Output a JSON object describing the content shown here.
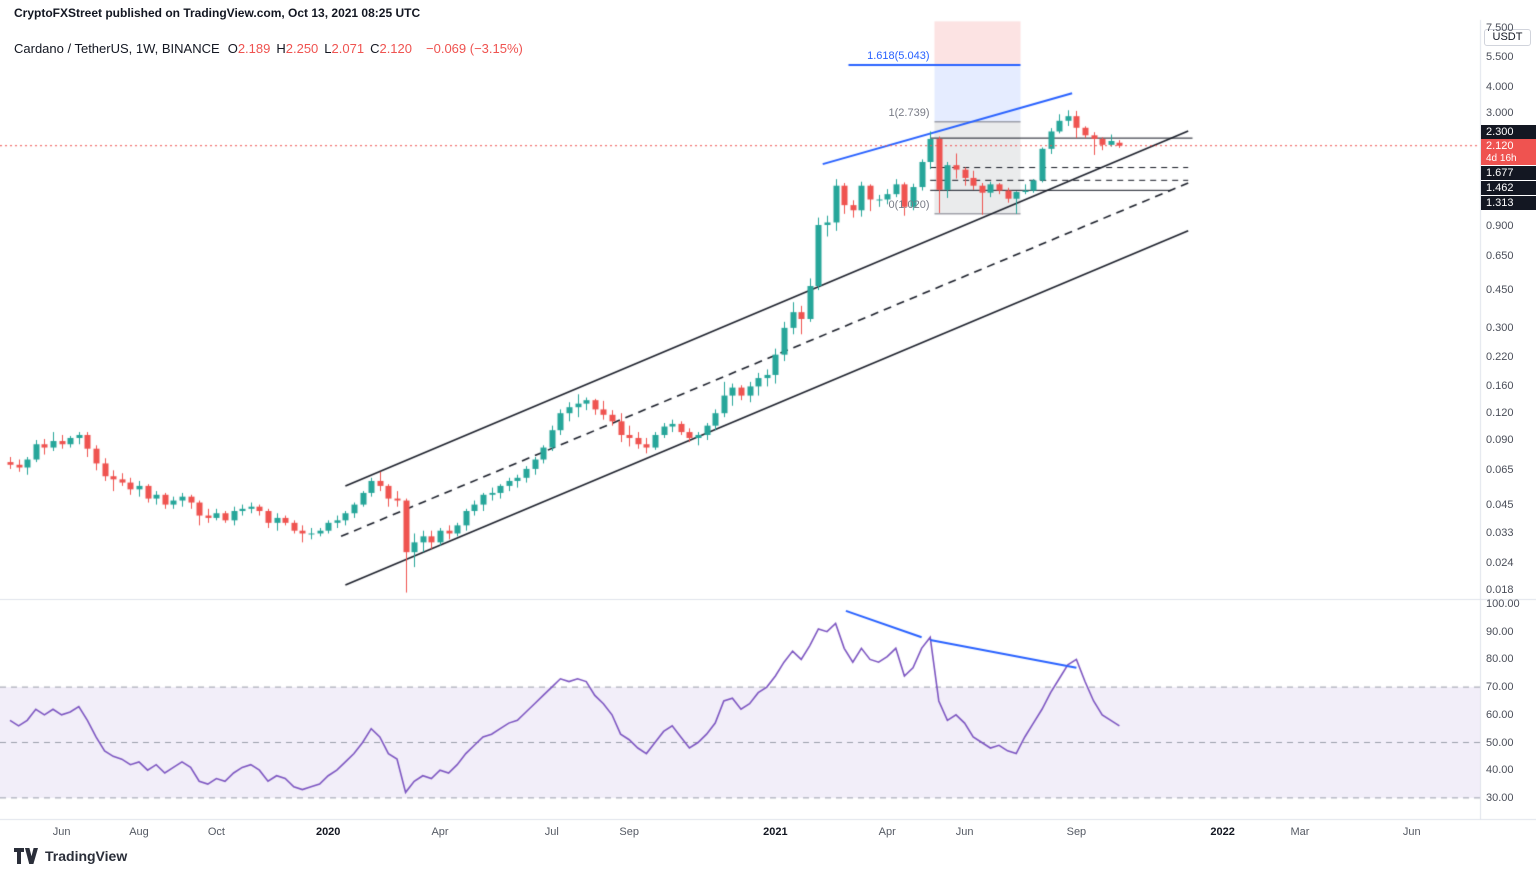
{
  "attribution": "CryptoFXStreet published on TradingView.com, Oct 13, 2021 08:25 UTC",
  "header": {
    "symbol": "Cardano / TetherUS, 1W, BINANCE",
    "fields": [
      {
        "label": "O",
        "value": "2.189"
      },
      {
        "label": "H",
        "value": "2.250"
      },
      {
        "label": "L",
        "value": "2.071"
      },
      {
        "label": "C",
        "value": "2.120"
      }
    ],
    "change": "−0.069 (−3.15%)"
  },
  "axis": {
    "unit_button": "USDT",
    "price_ticks": [
      {
        "v": 7.5,
        "label": "7.500"
      },
      {
        "v": 5.5,
        "label": "5.500"
      },
      {
        "v": 4.0,
        "label": "4.000"
      },
      {
        "v": 3.0,
        "label": "3.000"
      },
      {
        "v": 0.9,
        "label": "0.900"
      },
      {
        "v": 0.65,
        "label": "0.650"
      },
      {
        "v": 0.45,
        "label": "0.450"
      },
      {
        "v": 0.3,
        "label": "0.300"
      },
      {
        "v": 0.22,
        "label": "0.220"
      },
      {
        "v": 0.16,
        "label": "0.160"
      },
      {
        "v": 0.12,
        "label": "0.120"
      },
      {
        "v": 0.09,
        "label": "0.090"
      },
      {
        "v": 0.065,
        "label": "0.065"
      },
      {
        "v": 0.045,
        "label": "0.045"
      },
      {
        "v": 0.033,
        "label": "0.033"
      },
      {
        "v": 0.024,
        "label": "0.024"
      },
      {
        "v": 0.018,
        "label": "0.018"
      }
    ],
    "rsi_ticks": [
      {
        "v": 100,
        "label": "100.00"
      },
      {
        "v": 90,
        "label": "90.00"
      },
      {
        "v": 80,
        "label": "80.00"
      },
      {
        "v": 70,
        "label": "70.00"
      },
      {
        "v": 60,
        "label": "60.00"
      },
      {
        "v": 50,
        "label": "50.00"
      },
      {
        "v": 40,
        "label": "40.00"
      },
      {
        "v": 30,
        "label": "30.00"
      }
    ],
    "time_labels": [
      {
        "label": "Jun",
        "idx": 6,
        "year": false
      },
      {
        "label": "Aug",
        "idx": 15,
        "year": false
      },
      {
        "label": "Oct",
        "idx": 24,
        "year": false
      },
      {
        "label": "2020",
        "idx": 37,
        "year": true
      },
      {
        "label": "Apr",
        "idx": 50,
        "year": false
      },
      {
        "label": "Jul",
        "idx": 63,
        "year": false
      },
      {
        "label": "Sep",
        "idx": 72,
        "year": false
      },
      {
        "label": "2021",
        "idx": 89,
        "year": true
      },
      {
        "label": "Apr",
        "idx": 102,
        "year": false
      },
      {
        "label": "Jun",
        "idx": 111,
        "year": false
      },
      {
        "label": "Sep",
        "idx": 124,
        "year": false
      },
      {
        "label": "2022",
        "idx": 141,
        "year": true
      },
      {
        "label": "Mar",
        "idx": 150,
        "year": false
      },
      {
        "label": "Jun",
        "idx": 163,
        "year": false
      }
    ]
  },
  "logo": {
    "word": "TradingView"
  },
  "chart_data": {
    "type": "candlestick",
    "title": "Cardano / TetherUS, 1W, BINANCE",
    "scale": "log",
    "indicator": "RSI with 30-70 band and bearish-divergence trendlines",
    "current_price": {
      "value": 2.12,
      "label": "2.120",
      "countdown": "4d 16h"
    },
    "levels": [
      {
        "price": 2.3,
        "style": "solid",
        "from_idx": 107,
        "to_idx": 137.5,
        "axis_label": "2.300"
      },
      {
        "price": 1.677,
        "style": "dashed",
        "from_idx": 107,
        "to_idx": 137,
        "axis_label": "1.677"
      },
      {
        "price": 1.462,
        "style": "dashed",
        "from_idx": 107,
        "to_idx": 137,
        "axis_label": "1.462"
      },
      {
        "price": 1.313,
        "style": "solid",
        "from_idx": 107,
        "to_idx": 135,
        "axis_label": "1.313"
      }
    ],
    "fib": {
      "zones": [
        {
          "from": 5.043,
          "to": 8.05,
          "from_idx": 107.5,
          "to_idx": 117.5,
          "color": "rgba(239,83,80,0.16)"
        },
        {
          "from": 2.739,
          "to": 5.043,
          "from_idx": 107.5,
          "to_idx": 117.5,
          "color": "rgba(41,98,255,0.12)"
        },
        {
          "from": 1.02,
          "to": 2.739,
          "from_idx": 107.5,
          "to_idx": 117.5,
          "color": "rgba(140,142,150,0.18)"
        }
      ],
      "boundary_prices": [
        2.739,
        1.02
      ],
      "line_5043": {
        "price": 5.043,
        "from_idx": 97.5,
        "to_idx": 117.5
      },
      "labels": [
        {
          "text": "1.618(5.043)",
          "price": 5.043,
          "color": "#2962ff"
        },
        {
          "text": "1(2.739)",
          "price": 2.739,
          "color": "#787b86"
        },
        {
          "text": "0(1.020)",
          "price": 1.02,
          "color": "#787b86"
        }
      ]
    },
    "channel": [
      {
        "i1": 39,
        "p1": 0.055,
        "i2": 137,
        "p2": 2.48,
        "style": "solid"
      },
      {
        "i1": 38.5,
        "p1": 0.032,
        "i2": 137,
        "p2": 1.42,
        "style": "dashed"
      },
      {
        "i1": 39,
        "p1": 0.019,
        "i2": 137,
        "p2": 0.85,
        "style": "solid"
      }
    ],
    "blue_trendline": {
      "i1": 94.5,
      "p1": 1.74,
      "i2": 123.5,
      "p2": 3.72
    },
    "rsi_trendlines": [
      {
        "i1": 97.2,
        "v1": 97.5,
        "i2": 106,
        "v2": 88
      },
      {
        "i1": 107,
        "v1": 87,
        "i2": 124,
        "v2": 77
      }
    ],
    "rsi_band": [
      30,
      70
    ],
    "colors": {
      "up": "#26a69a",
      "down": "#ef5350",
      "blue": "#2962ff",
      "rsi": "#7e57c2",
      "channel": "#1e222d",
      "level": "#131722",
      "current": "#ef5350",
      "band_fill": "rgba(126,87,194,0.10)",
      "band_line": "#9b9eab",
      "separator": "#e0e3eb"
    },
    "candles": [
      [
        0.071,
        0.075,
        0.066,
        0.069
      ],
      [
        0.069,
        0.073,
        0.064,
        0.067
      ],
      [
        0.067,
        0.075,
        0.062,
        0.073
      ],
      [
        0.073,
        0.09,
        0.071,
        0.086
      ],
      [
        0.086,
        0.091,
        0.077,
        0.083
      ],
      [
        0.083,
        0.098,
        0.08,
        0.089
      ],
      [
        0.089,
        0.095,
        0.082,
        0.086
      ],
      [
        0.086,
        0.094,
        0.083,
        0.092
      ],
      [
        0.092,
        0.098,
        0.086,
        0.095
      ],
      [
        0.095,
        0.098,
        0.075,
        0.082
      ],
      [
        0.082,
        0.085,
        0.065,
        0.07
      ],
      [
        0.07,
        0.074,
        0.058,
        0.061
      ],
      [
        0.061,
        0.065,
        0.052,
        0.059
      ],
      [
        0.059,
        0.063,
        0.055,
        0.057
      ],
      [
        0.057,
        0.06,
        0.05,
        0.053
      ],
      [
        0.053,
        0.058,
        0.049,
        0.055
      ],
      [
        0.055,
        0.056,
        0.046,
        0.048
      ],
      [
        0.048,
        0.052,
        0.045,
        0.05
      ],
      [
        0.05,
        0.051,
        0.043,
        0.045
      ],
      [
        0.045,
        0.049,
        0.043,
        0.047
      ],
      [
        0.047,
        0.051,
        0.044,
        0.049
      ],
      [
        0.049,
        0.05,
        0.043,
        0.046
      ],
      [
        0.046,
        0.047,
        0.036,
        0.04
      ],
      [
        0.04,
        0.043,
        0.037,
        0.039
      ],
      [
        0.039,
        0.043,
        0.038,
        0.041
      ],
      [
        0.041,
        0.042,
        0.037,
        0.038
      ],
      [
        0.038,
        0.044,
        0.036,
        0.042
      ],
      [
        0.042,
        0.045,
        0.04,
        0.043
      ],
      [
        0.043,
        0.046,
        0.041,
        0.044
      ],
      [
        0.044,
        0.045,
        0.04,
        0.042
      ],
      [
        0.042,
        0.043,
        0.035,
        0.037
      ],
      [
        0.037,
        0.041,
        0.034,
        0.039
      ],
      [
        0.039,
        0.04,
        0.036,
        0.037
      ],
      [
        0.037,
        0.038,
        0.033,
        0.034
      ],
      [
        0.034,
        0.036,
        0.03,
        0.033
      ],
      [
        0.033,
        0.035,
        0.031,
        0.033
      ],
      [
        0.033,
        0.035,
        0.032,
        0.034
      ],
      [
        0.034,
        0.038,
        0.033,
        0.037
      ],
      [
        0.037,
        0.04,
        0.035,
        0.038
      ],
      [
        0.038,
        0.042,
        0.036,
        0.041
      ],
      [
        0.041,
        0.046,
        0.039,
        0.045
      ],
      [
        0.045,
        0.052,
        0.044,
        0.051
      ],
      [
        0.051,
        0.06,
        0.049,
        0.058
      ],
      [
        0.058,
        0.064,
        0.052,
        0.055
      ],
      [
        0.055,
        0.056,
        0.044,
        0.048
      ],
      [
        0.048,
        0.052,
        0.044,
        0.047
      ],
      [
        0.047,
        0.048,
        0.0175,
        0.027
      ],
      [
        0.027,
        0.033,
        0.023,
        0.03
      ],
      [
        0.03,
        0.034,
        0.027,
        0.032
      ],
      [
        0.032,
        0.034,
        0.028,
        0.03
      ],
      [
        0.03,
        0.035,
        0.029,
        0.034
      ],
      [
        0.034,
        0.036,
        0.031,
        0.033
      ],
      [
        0.033,
        0.037,
        0.032,
        0.036
      ],
      [
        0.036,
        0.043,
        0.034,
        0.042
      ],
      [
        0.042,
        0.047,
        0.04,
        0.045
      ],
      [
        0.045,
        0.051,
        0.042,
        0.05
      ],
      [
        0.05,
        0.054,
        0.047,
        0.051
      ],
      [
        0.051,
        0.056,
        0.048,
        0.055
      ],
      [
        0.055,
        0.06,
        0.052,
        0.058
      ],
      [
        0.058,
        0.062,
        0.054,
        0.06
      ],
      [
        0.06,
        0.068,
        0.057,
        0.066
      ],
      [
        0.066,
        0.075,
        0.062,
        0.073
      ],
      [
        0.073,
        0.085,
        0.07,
        0.083
      ],
      [
        0.083,
        0.105,
        0.08,
        0.1
      ],
      [
        0.1,
        0.125,
        0.095,
        0.12
      ],
      [
        0.12,
        0.135,
        0.11,
        0.128
      ],
      [
        0.128,
        0.147,
        0.115,
        0.133
      ],
      [
        0.133,
        0.142,
        0.124,
        0.138
      ],
      [
        0.138,
        0.14,
        0.118,
        0.125
      ],
      [
        0.125,
        0.137,
        0.112,
        0.118
      ],
      [
        0.118,
        0.124,
        0.105,
        0.11
      ],
      [
        0.11,
        0.12,
        0.088,
        0.095
      ],
      [
        0.095,
        0.105,
        0.084,
        0.092
      ],
      [
        0.092,
        0.098,
        0.082,
        0.086
      ],
      [
        0.086,
        0.092,
        0.078,
        0.083
      ],
      [
        0.083,
        0.098,
        0.081,
        0.095
      ],
      [
        0.095,
        0.108,
        0.092,
        0.104
      ],
      [
        0.104,
        0.112,
        0.098,
        0.107
      ],
      [
        0.107,
        0.11,
        0.095,
        0.098
      ],
      [
        0.098,
        0.102,
        0.088,
        0.092
      ],
      [
        0.092,
        0.098,
        0.085,
        0.095
      ],
      [
        0.095,
        0.108,
        0.09,
        0.105
      ],
      [
        0.105,
        0.125,
        0.1,
        0.12
      ],
      [
        0.12,
        0.168,
        0.115,
        0.145
      ],
      [
        0.145,
        0.165,
        0.13,
        0.158
      ],
      [
        0.158,
        0.162,
        0.138,
        0.145
      ],
      [
        0.145,
        0.168,
        0.135,
        0.16
      ],
      [
        0.16,
        0.185,
        0.145,
        0.175
      ],
      [
        0.175,
        0.192,
        0.16,
        0.181
      ],
      [
        0.181,
        0.24,
        0.165,
        0.225
      ],
      [
        0.225,
        0.32,
        0.21,
        0.3
      ],
      [
        0.3,
        0.395,
        0.28,
        0.355
      ],
      [
        0.355,
        0.38,
        0.28,
        0.33
      ],
      [
        0.33,
        0.51,
        0.32,
        0.47
      ],
      [
        0.47,
        0.98,
        0.45,
        0.905
      ],
      [
        0.905,
        1.0,
        0.8,
        0.93
      ],
      [
        0.93,
        1.48,
        0.85,
        1.38
      ],
      [
        1.38,
        1.42,
        1.02,
        1.12
      ],
      [
        1.12,
        1.18,
        0.98,
        1.06
      ],
      [
        1.06,
        1.44,
        0.99,
        1.38
      ],
      [
        1.38,
        1.4,
        1.05,
        1.19
      ],
      [
        1.19,
        1.25,
        1.1,
        1.19
      ],
      [
        1.19,
        1.33,
        1.13,
        1.26
      ],
      [
        1.26,
        1.48,
        1.22,
        1.4
      ],
      [
        1.4,
        1.43,
        1.0,
        1.1
      ],
      [
        1.1,
        1.41,
        1.06,
        1.36
      ],
      [
        1.36,
        1.83,
        1.31,
        1.78
      ],
      [
        1.78,
        2.47,
        1.65,
        2.28
      ],
      [
        2.28,
        2.34,
        1.03,
        1.32
      ],
      [
        1.32,
        1.78,
        1.21,
        1.72
      ],
      [
        1.72,
        1.95,
        1.49,
        1.64
      ],
      [
        1.64,
        1.68,
        1.38,
        1.5
      ],
      [
        1.5,
        1.62,
        1.32,
        1.38
      ],
      [
        1.38,
        1.42,
        1.01,
        1.28
      ],
      [
        1.28,
        1.44,
        1.22,
        1.4
      ],
      [
        1.4,
        1.42,
        1.26,
        1.31
      ],
      [
        1.31,
        1.35,
        1.15,
        1.2
      ],
      [
        1.2,
        1.3,
        1.02,
        1.29
      ],
      [
        1.29,
        1.4,
        1.26,
        1.31
      ],
      [
        1.31,
        1.48,
        1.28,
        1.46
      ],
      [
        1.46,
        2.08,
        1.43,
        2.05
      ],
      [
        2.05,
        2.56,
        1.94,
        2.47
      ],
      [
        2.47,
        2.97,
        2.42,
        2.77
      ],
      [
        2.77,
        3.1,
        2.62,
        2.91
      ],
      [
        2.91,
        3.08,
        2.3,
        2.57
      ],
      [
        2.57,
        2.61,
        2.3,
        2.37
      ],
      [
        2.37,
        2.45,
        1.92,
        2.28
      ],
      [
        2.28,
        2.32,
        2.02,
        2.14
      ],
      [
        2.14,
        2.39,
        2.1,
        2.23
      ],
      [
        2.189,
        2.25,
        2.071,
        2.12
      ]
    ],
    "rsi": [
      58,
      56,
      58,
      62,
      60,
      62,
      60,
      61,
      63,
      58,
      52,
      47,
      45,
      44,
      42,
      43,
      40,
      42,
      39,
      41,
      43,
      41,
      36,
      35,
      37,
      36,
      39,
      41,
      42,
      40,
      36,
      38,
      37,
      34,
      33,
      34,
      35,
      38,
      40,
      43,
      46,
      50,
      55,
      52,
      46,
      44,
      32,
      36,
      38,
      37,
      40,
      39,
      42,
      46,
      49,
      52,
      53,
      55,
      57,
      58,
      61,
      64,
      67,
      70,
      73,
      72,
      73,
      72,
      67,
      64,
      60,
      53,
      51,
      48,
      46,
      50,
      54,
      56,
      52,
      48,
      50,
      53,
      57,
      65,
      66,
      62,
      64,
      68,
      70,
      74,
      79,
      83,
      80,
      85,
      91,
      90,
      93,
      84,
      79,
      84,
      80,
      79,
      81,
      84,
      74,
      77,
      84,
      88,
      65,
      58,
      60,
      57,
      52,
      50,
      48,
      49,
      47,
      46,
      52,
      57,
      62,
      68,
      73,
      78,
      80,
      72,
      65,
      60,
      58,
      56
    ]
  }
}
